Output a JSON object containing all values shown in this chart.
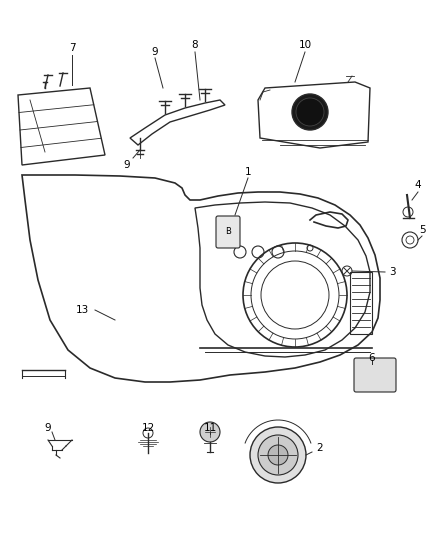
{
  "bg_color": "#ffffff",
  "line_color": "#2a2a2a",
  "text_color": "#000000",
  "fig_width": 4.38,
  "fig_height": 5.33,
  "dpi": 100
}
